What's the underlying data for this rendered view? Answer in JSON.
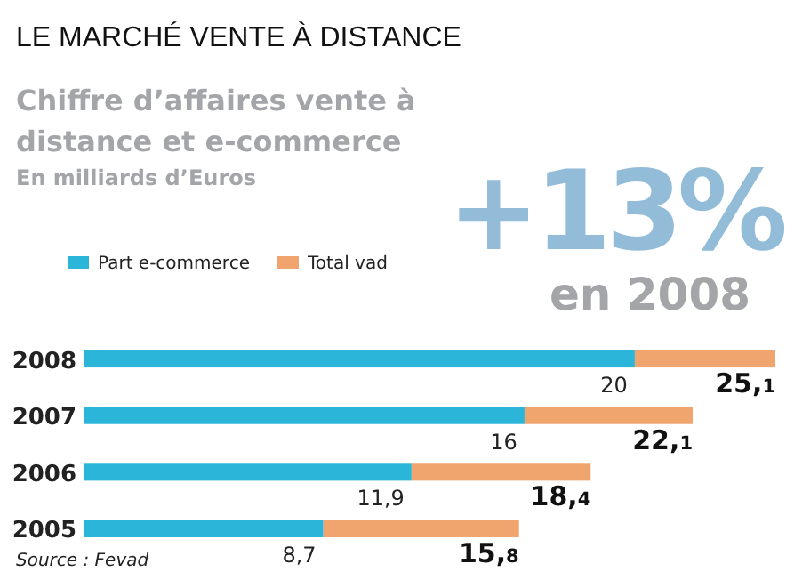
{
  "chart_data": {
    "type": "bar",
    "orientation": "horizontal",
    "stacked": true,
    "totals": [
      "25,1",
      "22,1",
      "18,4",
      "15,8"
    ],
    "title": "LE MARCHÉ VENTE À DISTANCE",
    "subtitle": "Chiffre d’affaires vente à distance et e-commerce",
    "annotations": [
      "En milliards d’Euros",
      "+13%",
      "en 2008",
      "Source : Fevad"
    ],
    "categories": [
      "2008",
      "2007",
      "2006",
      "2005"
    ],
    "legend": "top left",
    "series": [
      {
        "name": "Part e-commerce",
        "color": "#2bb5d8",
        "values": [
          20,
          16,
          11.9,
          8.7
        ],
        "value_labels": [
          "20",
          "16",
          "11,9",
          "8,7"
        ]
      },
      {
        "name": "Total vad",
        "color": "#f0a46e",
        "values": [
          5.1,
          6.1,
          6.5,
          7.1
        ]
      }
    ]
  }
}
